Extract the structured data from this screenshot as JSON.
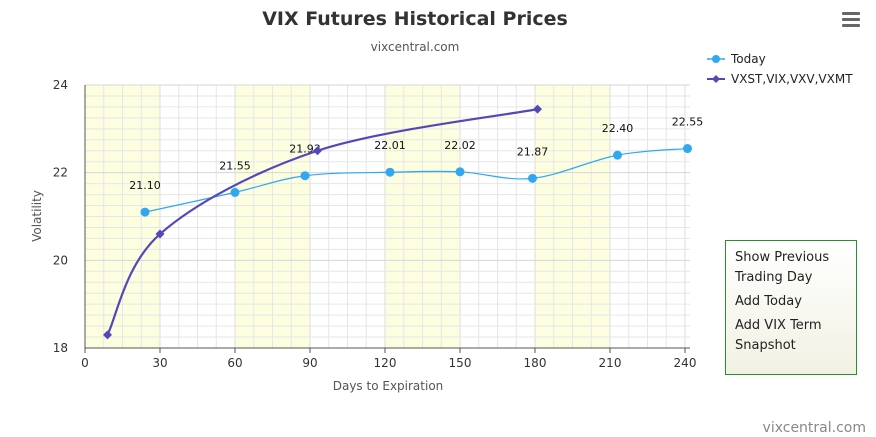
{
  "chart_data": {
    "type": "line",
    "title": "VIX Futures Historical Prices",
    "subtitle": "vixcentral.com",
    "xlabel": "Days to Expiration",
    "ylabel": "Volatility",
    "xlim": [
      0,
      242
    ],
    "ylim": [
      18,
      24
    ],
    "x_ticks": [
      0,
      30,
      60,
      90,
      120,
      150,
      180,
      210,
      240
    ],
    "y_ticks": [
      18,
      20,
      22,
      24
    ],
    "x_tick_labels": [
      "0",
      "30",
      "60",
      "90",
      "120",
      "150",
      "180",
      "210",
      "240"
    ],
    "y_tick_labels": [
      "18",
      "20",
      "22",
      "24"
    ],
    "grid": true,
    "legend_position": "top-right",
    "series": [
      {
        "name": "Today",
        "color": "#2fa8ef",
        "marker": "circle",
        "x": [
          24,
          60,
          88,
          122,
          150,
          179,
          213,
          241
        ],
        "y": [
          21.1,
          21.55,
          21.93,
          22.01,
          22.02,
          21.87,
          22.4,
          22.55
        ],
        "labels": [
          "21.10",
          "21.55",
          "21.93",
          "22.01",
          "22.02",
          "21.87",
          "22.40",
          "22.55"
        ]
      },
      {
        "name": "VXST,VIX,VXV,VXMT",
        "color": "#5448b8",
        "marker": "diamond",
        "x": [
          9,
          30,
          93,
          181
        ],
        "y": [
          18.3,
          20.6,
          22.5,
          23.45
        ]
      }
    ]
  },
  "menu": {
    "items": [
      "Show Previous Trading Day",
      "Add Today",
      "Add VIX Term Snapshot"
    ]
  },
  "credit": "vixcentral.com",
  "colors": {
    "band": "#fdfde0",
    "grid": "#e6e6e6",
    "menu_border": "#2e8b2e"
  }
}
